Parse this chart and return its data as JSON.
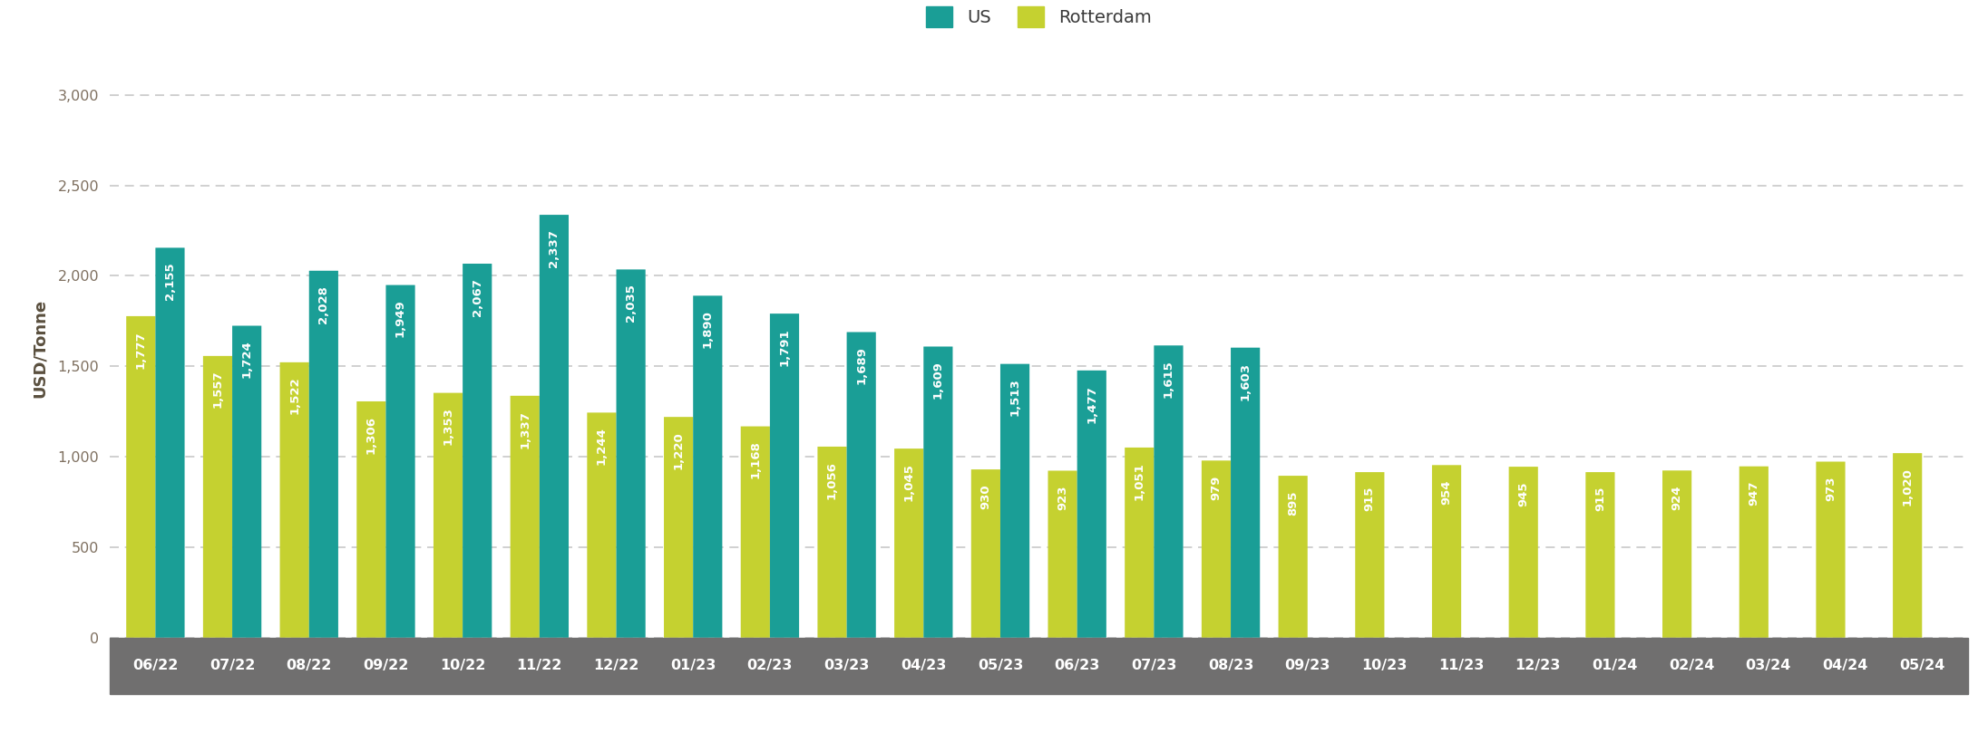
{
  "categories": [
    "06/22",
    "07/22",
    "08/22",
    "09/22",
    "10/22",
    "11/22",
    "12/22",
    "01/23",
    "02/23",
    "03/23",
    "04/23",
    "05/23",
    "06/23",
    "07/23",
    "08/23",
    "09/23",
    "10/23",
    "11/23",
    "12/23",
    "01/24",
    "02/24",
    "03/24",
    "04/24",
    "05/24"
  ],
  "us_values": [
    2155,
    1724,
    2028,
    1949,
    2067,
    2337,
    2035,
    1890,
    1791,
    1689,
    1609,
    1513,
    1477,
    1615,
    1603,
    null,
    null,
    null,
    null,
    null,
    null,
    null,
    null,
    null
  ],
  "rotterdam_values": [
    1777,
    1557,
    1522,
    1306,
    1353,
    1337,
    1244,
    1220,
    1168,
    1056,
    1045,
    930,
    923,
    1051,
    979,
    895,
    915,
    954,
    945,
    915,
    924,
    947,
    973,
    1020
  ],
  "us_color": "#1a9e96",
  "rotterdam_color": "#c5d130",
  "us_label": "US",
  "rotterdam_label": "Rotterdam",
  "ylabel": "USD/Tonne",
  "ylim": [
    0,
    3200
  ],
  "yticks": [
    0,
    500,
    1000,
    1500,
    2000,
    2500,
    3000
  ],
  "ytick_labels": [
    "0",
    "500",
    "1,000",
    "1,500",
    "2,000",
    "2,500",
    "3,000"
  ],
  "bar_width": 0.38,
  "background_color": "#ffffff",
  "xaxis_bg": "#706f6f",
  "grid_color": "#c8c8c8",
  "label_fontsize": 9.5,
  "axis_label_fontsize": 13,
  "legend_fontsize": 14,
  "tick_fontsize": 11.5,
  "ytick_color": "#7f7060",
  "ylabel_color": "#5a4f3e"
}
